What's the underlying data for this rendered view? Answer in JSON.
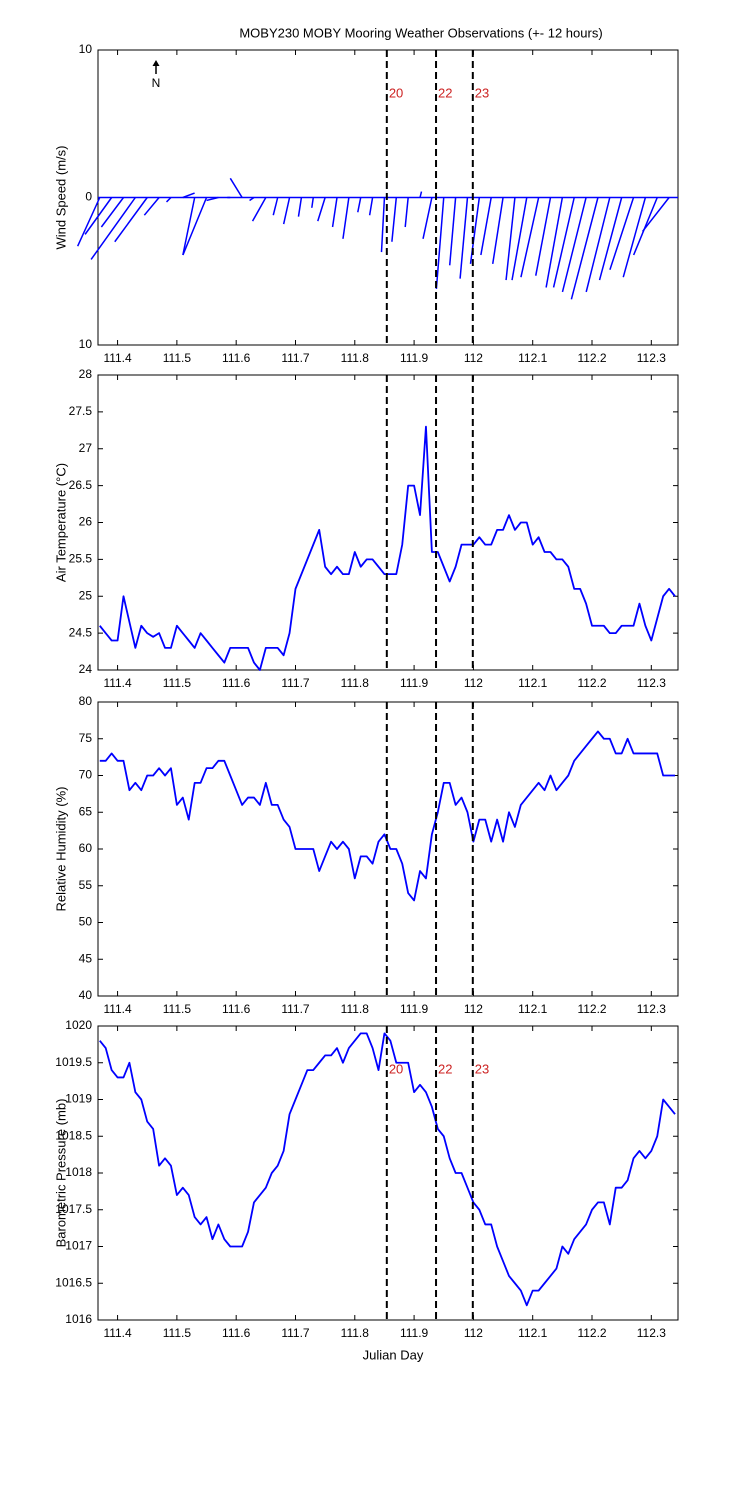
{
  "chart_data": [
    {
      "type": "stick",
      "title": "MOBY230 MOBY Mooring Weather Observations (+- 12 hours)",
      "ylabel": "Wind Speed (m/s)",
      "north_label": "N",
      "color": "#0000ff",
      "xlim": [
        111.367,
        112.345
      ],
      "xticks": [
        111.4,
        111.5,
        111.6,
        111.7,
        111.8,
        111.9,
        112,
        112.1,
        112.2,
        112.3
      ],
      "ylim": [
        -10,
        10
      ],
      "yticks": [
        10,
        0,
        {
          "value": -10,
          "label": "10"
        }
      ],
      "vlines": [
        111.854,
        111.937,
        111.999
      ],
      "vline_labels": [
        "20",
        "22",
        "23"
      ],
      "x": [
        111.37,
        111.39,
        111.41,
        111.43,
        111.45,
        111.47,
        111.49,
        111.51,
        111.53,
        111.55,
        111.57,
        111.59,
        111.61,
        111.63,
        111.65,
        111.67,
        111.69,
        111.71,
        111.73,
        111.75,
        111.77,
        111.79,
        111.81,
        111.83,
        111.85,
        111.87,
        111.89,
        111.91,
        111.93,
        111.95,
        111.97,
        111.99,
        112.01,
        112.03,
        112.05,
        112.07,
        112.09,
        112.11,
        112.13,
        112.15,
        112.17,
        112.19,
        112.21,
        112.23,
        112.25,
        112.27,
        112.29,
        112.31,
        112.33
      ],
      "u": [
        -1.5,
        -1.8,
        -1.5,
        -3.0,
        -2.2,
        -1.0,
        -0.3,
        0.8,
        -0.8,
        -1.6,
        -0.8,
        -0.2,
        -0.8,
        -0.3,
        -0.9,
        -0.3,
        -0.4,
        -0.2,
        -0.1,
        -0.5,
        -0.3,
        -0.4,
        -0.2,
        -0.2,
        -0.2,
        -0.3,
        -0.2,
        0.1,
        -0.6,
        -0.5,
        -0.4,
        -0.5,
        -0.6,
        -0.7,
        -0.7,
        -0.6,
        -1.0,
        -1.2,
        -1.0,
        -1.1,
        -1.4,
        -1.6,
        -1.8,
        -1.6,
        -1.5,
        -1.6,
        -1.5,
        -1.6,
        -1.8
      ],
      "v": [
        -3.3,
        -2.5,
        -2.0,
        -4.2,
        -3.0,
        -1.2,
        -0.3,
        0.3,
        -3.9,
        -3.9,
        -0.2,
        0,
        1.3,
        -0.2,
        -1.6,
        -1.2,
        -1.8,
        -1.3,
        -0.7,
        -1.6,
        -2.0,
        -2.8,
        -1.0,
        -1.2,
        -3.7,
        -3.0,
        -2.0,
        0.4,
        -2.8,
        -6.2,
        -4.6,
        -5.5,
        -4.5,
        -3.9,
        -4.5,
        -5.6,
        -5.6,
        -5.4,
        -5.3,
        -6.1,
        -6.1,
        -6.4,
        -6.9,
        -6.4,
        -5.6,
        -4.9,
        -5.4,
        -3.9,
        -2.3
      ]
    },
    {
      "type": "line",
      "ylabel": "Air Temperature (°C)",
      "color": "#0000ff",
      "xlim": [
        111.367,
        112.345
      ],
      "xticks": [
        111.4,
        111.5,
        111.6,
        111.7,
        111.8,
        111.9,
        112,
        112.1,
        112.2,
        112.3
      ],
      "ylim": [
        24,
        28
      ],
      "yticks": [
        24,
        24.5,
        25,
        25.5,
        26,
        26.5,
        27,
        27.5,
        28
      ],
      "vlines": [
        111.854,
        111.937,
        111.999
      ],
      "x": [
        111.37,
        111.38,
        111.39,
        111.4,
        111.41,
        111.42,
        111.43,
        111.44,
        111.45,
        111.46,
        111.47,
        111.48,
        111.49,
        111.5,
        111.51,
        111.52,
        111.53,
        111.54,
        111.55,
        111.56,
        111.57,
        111.58,
        111.59,
        111.6,
        111.61,
        111.62,
        111.63,
        111.64,
        111.65,
        111.66,
        111.67,
        111.68,
        111.69,
        111.7,
        111.71,
        111.72,
        111.73,
        111.74,
        111.75,
        111.76,
        111.77,
        111.78,
        111.79,
        111.8,
        111.81,
        111.82,
        111.83,
        111.84,
        111.85,
        111.86,
        111.87,
        111.88,
        111.89,
        111.9,
        111.91,
        111.92,
        111.93,
        111.94,
        111.95,
        111.96,
        111.97,
        111.98,
        111.99,
        112,
        112.01,
        112.02,
        112.03,
        112.04,
        112.05,
        112.06,
        112.07,
        112.08,
        112.09,
        112.1,
        112.11,
        112.12,
        112.13,
        112.14,
        112.15,
        112.16,
        112.17,
        112.18,
        112.19,
        112.2,
        112.21,
        112.22,
        112.23,
        112.24,
        112.25,
        112.26,
        112.27,
        112.28,
        112.29,
        112.3,
        112.31,
        112.32,
        112.33,
        112.34
      ],
      "values": [
        24.6,
        24.5,
        24.4,
        24.4,
        25.0,
        24.65,
        24.3,
        24.6,
        24.5,
        24.45,
        24.5,
        24.3,
        24.3,
        24.6,
        24.5,
        24.4,
        24.3,
        24.5,
        24.4,
        24.3,
        24.2,
        24.1,
        24.3,
        24.3,
        24.3,
        24.3,
        24.1,
        24.0,
        24.3,
        24.3,
        24.3,
        24.2,
        24.5,
        25.1,
        25.3,
        25.5,
        25.7,
        25.9,
        25.4,
        25.3,
        25.4,
        25.3,
        25.3,
        25.6,
        25.4,
        25.5,
        25.5,
        25.4,
        25.3,
        25.3,
        25.3,
        25.7,
        26.5,
        26.5,
        26.1,
        27.3,
        25.6,
        25.6,
        25.4,
        25.2,
        25.4,
        25.7,
        25.7,
        25.7,
        25.8,
        25.7,
        25.7,
        25.9,
        25.9,
        26.1,
        25.9,
        26.0,
        26.0,
        25.7,
        25.8,
        25.6,
        25.6,
        25.5,
        25.5,
        25.4,
        25.1,
        25.1,
        24.9,
        24.6,
        24.6,
        24.6,
        24.5,
        24.5,
        24.6,
        24.6,
        24.6,
        24.9,
        24.6,
        24.4,
        24.7,
        25.0,
        25.1,
        25.0
      ]
    },
    {
      "type": "line",
      "ylabel": "Relative Humidity (%)",
      "color": "#0000ff",
      "xlim": [
        111.367,
        112.345
      ],
      "xticks": [
        111.4,
        111.5,
        111.6,
        111.7,
        111.8,
        111.9,
        112,
        112.1,
        112.2,
        112.3
      ],
      "ylim": [
        40,
        80
      ],
      "yticks": [
        40,
        45,
        50,
        55,
        60,
        65,
        70,
        75,
        80
      ],
      "vlines": [
        111.854,
        111.937,
        111.999
      ],
      "x": [
        111.37,
        111.38,
        111.39,
        111.4,
        111.41,
        111.42,
        111.43,
        111.44,
        111.45,
        111.46,
        111.47,
        111.48,
        111.49,
        111.5,
        111.51,
        111.52,
        111.53,
        111.54,
        111.55,
        111.56,
        111.57,
        111.58,
        111.59,
        111.6,
        111.61,
        111.62,
        111.63,
        111.64,
        111.65,
        111.66,
        111.67,
        111.68,
        111.69,
        111.7,
        111.71,
        111.72,
        111.73,
        111.74,
        111.75,
        111.76,
        111.77,
        111.78,
        111.79,
        111.8,
        111.81,
        111.82,
        111.83,
        111.84,
        111.85,
        111.86,
        111.87,
        111.88,
        111.89,
        111.9,
        111.91,
        111.92,
        111.93,
        111.94,
        111.95,
        111.96,
        111.97,
        111.98,
        111.99,
        112,
        112.01,
        112.02,
        112.03,
        112.04,
        112.05,
        112.06,
        112.07,
        112.08,
        112.09,
        112.1,
        112.11,
        112.12,
        112.13,
        112.14,
        112.15,
        112.16,
        112.17,
        112.18,
        112.19,
        112.2,
        112.21,
        112.22,
        112.23,
        112.24,
        112.25,
        112.26,
        112.27,
        112.28,
        112.29,
        112.3,
        112.31,
        112.32,
        112.33,
        112.34
      ],
      "values": [
        72,
        72,
        73,
        72,
        72,
        68,
        69,
        68,
        70,
        70,
        71,
        70,
        71,
        66,
        67,
        64,
        69,
        69,
        71,
        71,
        72,
        72,
        70,
        68,
        66,
        67,
        67,
        66,
        69,
        66,
        66,
        64,
        63,
        60,
        60,
        60,
        60,
        57,
        59,
        61,
        60,
        61,
        60,
        56,
        59,
        59,
        58,
        61,
        62,
        60,
        60,
        58,
        54,
        53,
        57,
        56,
        62,
        65,
        69,
        69,
        66,
        67,
        65,
        61,
        64,
        64,
        61,
        64,
        61,
        65,
        63,
        66,
        67,
        68,
        69,
        68,
        70,
        68,
        69,
        70,
        72,
        73,
        74,
        75,
        76,
        75,
        75,
        73,
        73,
        75,
        73,
        73,
        73,
        73,
        73,
        70,
        70,
        70
      ]
    },
    {
      "type": "line",
      "ylabel": "Barometric Pressure (mb)",
      "xlabel": "Julian Day",
      "color": "#0000ff",
      "xlim": [
        111.367,
        112.345
      ],
      "xticks": [
        111.4,
        111.5,
        111.6,
        111.7,
        111.8,
        111.9,
        112,
        112.1,
        112.2,
        112.3
      ],
      "ylim": [
        1016,
        1020
      ],
      "yticks": [
        1016,
        1016.5,
        1017,
        1017.5,
        1018,
        1018.5,
        1019,
        1019.5,
        1020
      ],
      "vlines": [
        111.854,
        111.937,
        111.999
      ],
      "vline_labels": [
        "20",
        "22",
        "23"
      ],
      "x": [
        111.37,
        111.38,
        111.39,
        111.4,
        111.41,
        111.42,
        111.43,
        111.44,
        111.45,
        111.46,
        111.47,
        111.48,
        111.49,
        111.5,
        111.51,
        111.52,
        111.53,
        111.54,
        111.55,
        111.56,
        111.57,
        111.58,
        111.59,
        111.6,
        111.61,
        111.62,
        111.63,
        111.64,
        111.65,
        111.66,
        111.67,
        111.68,
        111.69,
        111.7,
        111.71,
        111.72,
        111.73,
        111.74,
        111.75,
        111.76,
        111.77,
        111.78,
        111.79,
        111.8,
        111.81,
        111.82,
        111.83,
        111.84,
        111.85,
        111.86,
        111.87,
        111.88,
        111.89,
        111.9,
        111.91,
        111.92,
        111.93,
        111.94,
        111.95,
        111.96,
        111.97,
        111.98,
        111.99,
        112,
        112.01,
        112.02,
        112.03,
        112.04,
        112.05,
        112.06,
        112.07,
        112.08,
        112.09,
        112.1,
        112.11,
        112.12,
        112.13,
        112.14,
        112.15,
        112.16,
        112.17,
        112.18,
        112.19,
        112.2,
        112.21,
        112.22,
        112.23,
        112.24,
        112.25,
        112.26,
        112.27,
        112.28,
        112.29,
        112.3,
        112.31,
        112.32,
        112.33,
        112.34
      ],
      "values": [
        1019.8,
        1019.7,
        1019.4,
        1019.3,
        1019.3,
        1019.5,
        1019.1,
        1019.0,
        1018.7,
        1018.6,
        1018.1,
        1018.2,
        1018.1,
        1017.7,
        1017.8,
        1017.7,
        1017.4,
        1017.3,
        1017.4,
        1017.1,
        1017.3,
        1017.1,
        1017.0,
        1017.0,
        1017.0,
        1017.2,
        1017.6,
        1017.7,
        1017.8,
        1018.0,
        1018.1,
        1018.3,
        1018.8,
        1019.0,
        1019.2,
        1019.4,
        1019.4,
        1019.5,
        1019.6,
        1019.6,
        1019.7,
        1019.5,
        1019.7,
        1019.8,
        1019.9,
        1019.9,
        1019.7,
        1019.4,
        1019.9,
        1019.8,
        1019.5,
        1019.5,
        1019.5,
        1019.1,
        1019.2,
        1019.1,
        1018.9,
        1018.6,
        1018.5,
        1018.2,
        1018.0,
        1018.0,
        1017.8,
        1017.6,
        1017.5,
        1017.3,
        1017.3,
        1017.0,
        1016.8,
        1016.6,
        1016.5,
        1016.4,
        1016.2,
        1016.4,
        1016.4,
        1016.5,
        1016.6,
        1016.7,
        1017.0,
        1016.9,
        1017.1,
        1017.2,
        1017.3,
        1017.5,
        1017.6,
        1017.6,
        1017.3,
        1017.8,
        1017.8,
        1017.9,
        1018.2,
        1018.3,
        1018.2,
        1018.3,
        1018.5,
        1019.0,
        1018.9,
        1018.8
      ]
    }
  ]
}
